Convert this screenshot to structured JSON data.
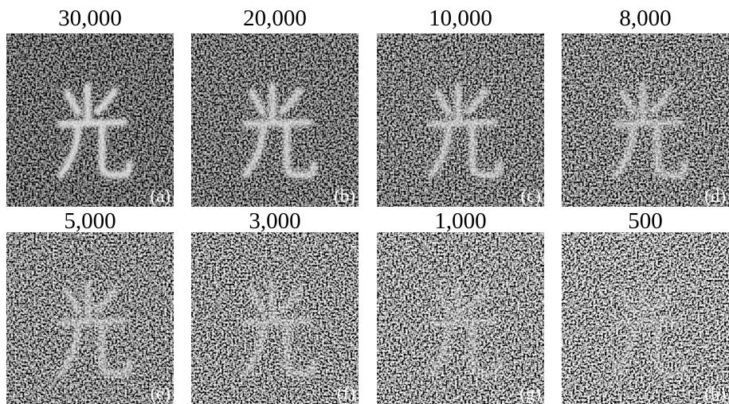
{
  "panels": [
    {
      "title": "30,000",
      "label": "(a)"
    },
    {
      "title": "20,000",
      "label": "(b)"
    },
    {
      "title": "10,000",
      "label": "(c)"
    },
    {
      "title": "8,000",
      "label": "(d)"
    },
    {
      "title": "5,000",
      "label": "(e)"
    },
    {
      "title": "3,000",
      "label": "(f)"
    },
    {
      "title": "1,000",
      "label": "(g)"
    },
    {
      "title": "500",
      "label": "(h)"
    }
  ]
}
